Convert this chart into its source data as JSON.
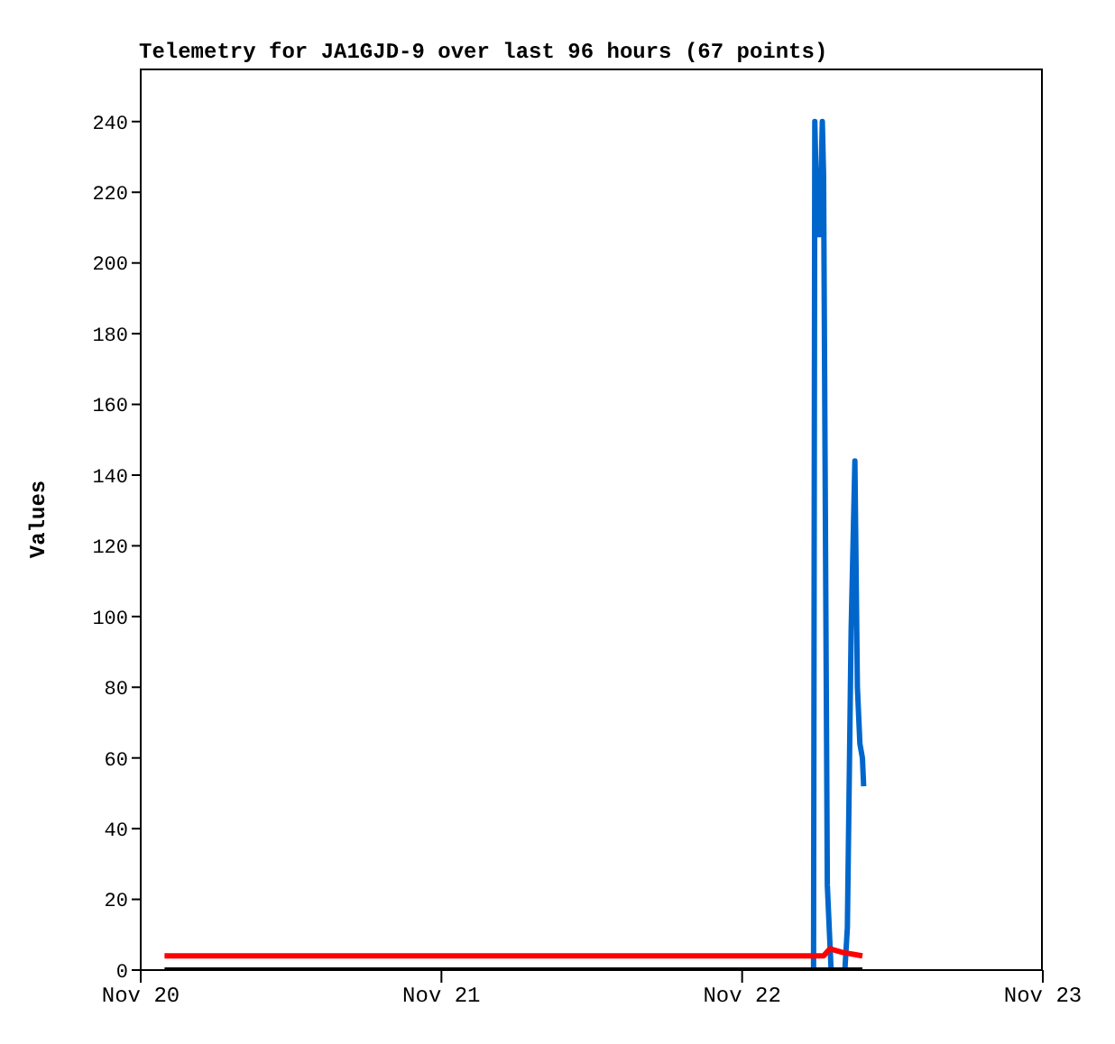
{
  "chart_data": {
    "type": "line",
    "title": "Telemetry for JA1GJD-9 over last 96 hours (67 points)",
    "ylabel": "Values",
    "xlim": [
      "--11-20",
      "--11-23"
    ],
    "xticks": [
      {
        "value": "--11-20",
        "label": "Nov 20"
      },
      {
        "value": "--11-21",
        "label": "Nov 21"
      },
      {
        "value": "--11-22",
        "label": "Nov 22"
      },
      {
        "value": "--11-23",
        "label": "Nov 23"
      }
    ],
    "ylim": [
      0,
      255
    ],
    "yticks": [
      0,
      20,
      40,
      60,
      80,
      100,
      120,
      140,
      160,
      180,
      200,
      220,
      240
    ],
    "marker": "none",
    "line_style": "solid",
    "series": [
      {
        "color": "#0066cc",
        "x": [
          "--11-22T05:42",
          "--11-22T05:48",
          "--11-22T06:00",
          "--11-22T06:12",
          "--11-22T06:24",
          "--11-22T06:30",
          "--11-22T06:48",
          "--11-22T07:06",
          "--11-22T08:12",
          "--11-22T08:24",
          "--11-22T08:42",
          "--11-22T09:00",
          "--11-22T09:12",
          "--11-22T09:24",
          "--11-22T09:36",
          "--11-22T09:42"
        ],
        "values": [
          0,
          240,
          208,
          208,
          240,
          225,
          24,
          0,
          0,
          12,
          96,
          144,
          80,
          64,
          60,
          52
        ]
      },
      {
        "color": "#ff0000",
        "x": [
          "--11-20T01:54",
          "--11-22T06:30",
          "--11-22T07:00",
          "--11-22T08:00",
          "--11-22T09:36"
        ],
        "values": [
          4,
          4,
          6,
          5,
          4
        ]
      },
      {
        "color": "#000000",
        "x": [
          "--11-20T01:54",
          "--11-22T09:36"
        ],
        "values": [
          0,
          0
        ]
      }
    ]
  }
}
